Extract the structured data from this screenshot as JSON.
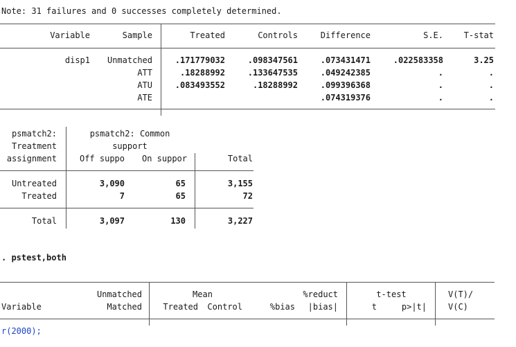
{
  "note": "Note: 31 failures and 0 successes completely determined.",
  "table1": {
    "headers": [
      "Variable",
      "Sample",
      "Treated",
      "Controls",
      "Difference",
      "S.E.",
      "T-stat"
    ],
    "rows": [
      {
        "variable": "disp1",
        "sample": "Unmatched",
        "treated": ".171779032",
        "controls": ".098347561",
        "difference": ".073431471",
        "se": ".022583358",
        "tstat": "3.25"
      },
      {
        "variable": "",
        "sample": "ATT",
        "treated": ".18288992",
        "controls": ".133647535",
        "difference": ".049242385",
        "se": ".",
        "tstat": "."
      },
      {
        "variable": "",
        "sample": "ATU",
        "treated": ".083493552",
        "controls": ".18288992",
        "difference": ".099396368",
        "se": ".",
        "tstat": "."
      },
      {
        "variable": "",
        "sample": "ATE",
        "treated": "",
        "controls": "",
        "difference": ".074319376",
        "se": ".",
        "tstat": "."
      }
    ]
  },
  "table2": {
    "row_header": [
      "psmatch2:",
      "Treatment",
      "assignment"
    ],
    "group_header": [
      "psmatch2: Common",
      "support"
    ],
    "col_headers": [
      "Off suppo",
      "On suppor",
      "Total"
    ],
    "rows": [
      {
        "label": "Untreated",
        "off": "3,090",
        "on": "65",
        "total": "3,155"
      },
      {
        "label": "Treated",
        "off": "7",
        "on": "65",
        "total": "72"
      }
    ],
    "total_row": {
      "label": "Total",
      "off": "3,097",
      "on": "130",
      "total": "3,227"
    }
  },
  "command": ". pstest,both",
  "table3": {
    "variable": "Variable",
    "unmatched": "Unmatched",
    "matched": "Matched",
    "mean": "Mean",
    "treated": "Treated",
    "control": "Control",
    "bias": "%bias",
    "reduct": "%reduct",
    "abs_bias": "|bias|",
    "ttest": "t-test",
    "t": "t",
    "pval": "p>|t|",
    "vratio_top": "V(T)/",
    "vratio_bottom": "V(C)"
  },
  "last_line": "r(2000);"
}
